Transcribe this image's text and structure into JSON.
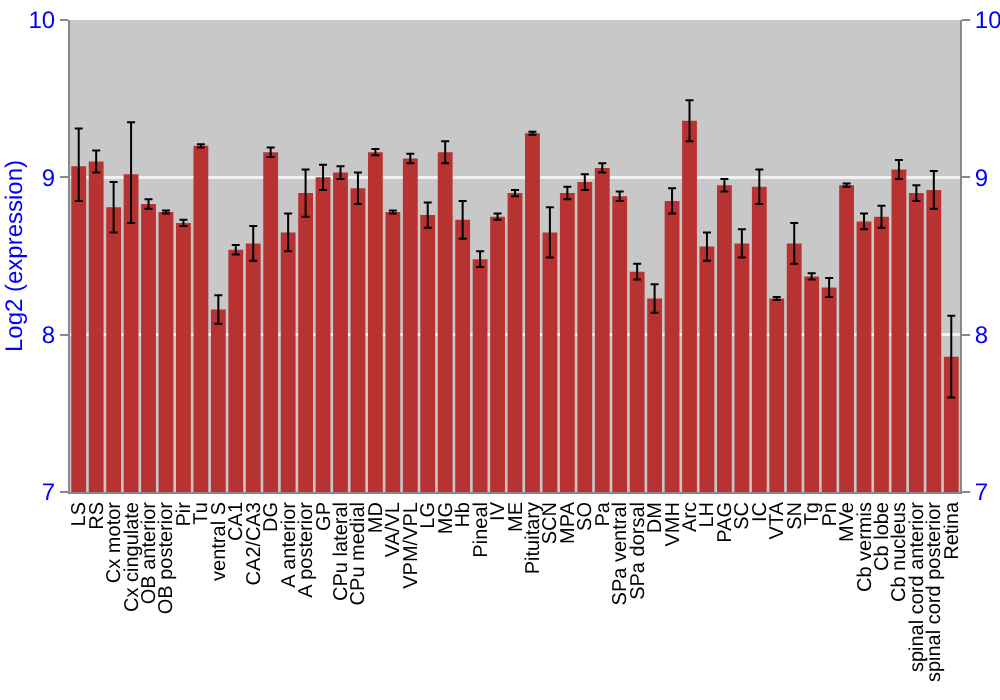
{
  "chart_data": {
    "type": "bar",
    "ylabel": "Log2 (expression)",
    "color": "#b83232",
    "categories": [
      "LS",
      "RS",
      "Cx motor",
      "Cx cingulate",
      "OB anterior",
      "OB posterior",
      "Pir",
      "Tu",
      "ventral S",
      "CA1",
      "CA2/CA3",
      "DG",
      "A anterior",
      "A posterior",
      "GP",
      "CPu lateral",
      "CPu medial",
      "MD",
      "VA/VL",
      "VPM/VPL",
      "LG",
      "MG",
      "Hb",
      "Pineal",
      "IV",
      "ME",
      "Pituitary",
      "SCN",
      "MPA",
      "SO",
      "Pa",
      "SPa ventral",
      "SPa dorsal",
      "DM",
      "VMH",
      "Arc",
      "LH",
      "PAG",
      "SC",
      "IC",
      "VTA",
      "SN",
      "Tg",
      "Pn",
      "MVe",
      "Cb vermis",
      "Cb lobe",
      "Cb nucleus",
      "spinal cord anterior",
      "spinal cord posterior",
      "Retina"
    ],
    "values": [
      9.07,
      9.1,
      8.81,
      9.02,
      8.83,
      8.78,
      8.71,
      9.2,
      8.16,
      8.54,
      8.58,
      9.16,
      8.65,
      8.9,
      9.0,
      9.03,
      8.93,
      9.16,
      8.78,
      9.12,
      8.76,
      9.16,
      8.73,
      8.48,
      8.75,
      8.9,
      9.28,
      8.65,
      8.9,
      8.97,
      9.06,
      8.88,
      8.4,
      8.23,
      8.85,
      9.36,
      8.56,
      8.95,
      8.58,
      8.94,
      8.23,
      8.58,
      8.37,
      8.3,
      8.95,
      8.72,
      8.75,
      9.05,
      8.9,
      8.92,
      7.86
    ],
    "errors": [
      [
        8.85,
        9.31
      ],
      0.07,
      0.16,
      [
        8.71,
        9.35
      ],
      0.03,
      0.01,
      0.02,
      0.01,
      0.09,
      0.03,
      0.11,
      0.03,
      0.12,
      0.15,
      0.08,
      0.04,
      0.1,
      0.02,
      0.01,
      0.03,
      0.08,
      0.07,
      0.12,
      0.05,
      0.02,
      0.02,
      0.01,
      0.16,
      0.04,
      0.05,
      0.03,
      0.03,
      0.05,
      0.09,
      0.08,
      0.13,
      0.09,
      0.04,
      0.09,
      0.11,
      0.01,
      0.13,
      0.02,
      0.06,
      0.01,
      0.05,
      0.07,
      0.06,
      0.05,
      0.12,
      0.26
    ],
    "ylim": [
      7,
      10
    ],
    "yticks": [
      7,
      8,
      9,
      10
    ],
    "y2lim": [
      7,
      10
    ],
    "y2ticks": [
      7,
      8,
      9,
      10
    ],
    "grid": "y"
  }
}
